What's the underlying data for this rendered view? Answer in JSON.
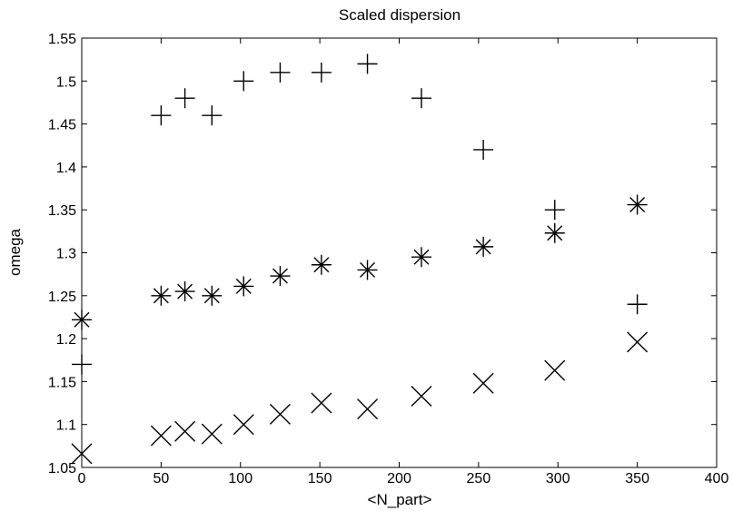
{
  "chart_data": {
    "type": "scatter",
    "title": "Scaled dispersion",
    "xlabel": "<N_part>",
    "ylabel": "omega",
    "xlim": [
      0,
      400
    ],
    "ylim": [
      1.05,
      1.55
    ],
    "x_ticks": [
      "0",
      "50",
      "100",
      "150",
      "200",
      "250",
      "300",
      "350",
      "400"
    ],
    "y_ticks": [
      "1.05",
      "1.1",
      "1.15",
      "1.2",
      "1.25",
      "1.3",
      "1.35",
      "1.4",
      "1.45",
      "1.5",
      "1.55"
    ],
    "grid": false,
    "series": [
      {
        "marker": "plus",
        "color": "#000000",
        "x": [
          0,
          50,
          65,
          82,
          102,
          125,
          151,
          180,
          214,
          253,
          298,
          350
        ],
        "y": [
          1.17,
          1.46,
          1.48,
          1.46,
          1.5,
          1.51,
          1.51,
          1.52,
          1.48,
          1.42,
          1.35,
          1.24
        ]
      },
      {
        "marker": "asterisk",
        "color": "#000000",
        "x": [
          0,
          50,
          65,
          82,
          102,
          125,
          151,
          180,
          214,
          253,
          298,
          350
        ],
        "y": [
          1.222,
          1.25,
          1.255,
          1.25,
          1.261,
          1.273,
          1.286,
          1.28,
          1.295,
          1.307,
          1.323,
          1.356
        ]
      },
      {
        "marker": "x",
        "color": "#000000",
        "x": [
          0,
          50,
          65,
          82,
          102,
          125,
          151,
          180,
          214,
          253,
          298,
          350
        ],
        "y": [
          1.066,
          1.087,
          1.092,
          1.089,
          1.1,
          1.112,
          1.125,
          1.118,
          1.133,
          1.148,
          1.163,
          1.196
        ]
      }
    ]
  }
}
